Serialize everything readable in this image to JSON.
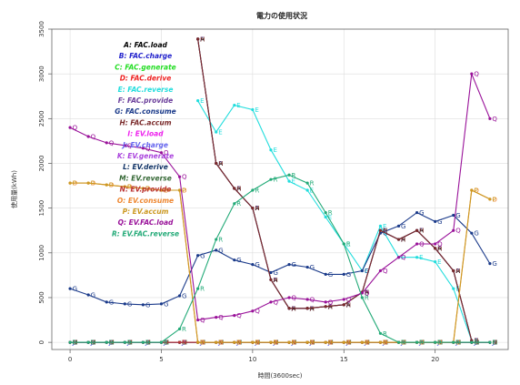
{
  "chart_data": {
    "type": "line",
    "title": "電力の使用状況",
    "xlabel": "時間(3600sec)",
    "ylabel": "使用量(kWh)",
    "xlim": [
      -1,
      24
    ],
    "ylim": [
      -80,
      3500
    ],
    "xticks": [
      0,
      5,
      10,
      15,
      20
    ],
    "yticks": [
      0,
      500,
      1000,
      1500,
      2000,
      2500,
      3000,
      3500
    ],
    "grid": true,
    "legend_position": "top-left",
    "x": [
      0,
      1,
      2,
      3,
      4,
      5,
      6,
      7,
      8,
      9,
      10,
      11,
      12,
      13,
      14,
      15,
      16,
      17,
      18,
      19,
      20,
      21,
      22,
      23
    ],
    "series": [
      {
        "name": "A: FAC.load",
        "mark": "A",
        "color": "#000000",
        "values": [
          null,
          null,
          null,
          null,
          null,
          null,
          null,
          3390,
          2000,
          1720,
          1500,
          700,
          380,
          380,
          400,
          420,
          560,
          1250,
          1150,
          1250,
          1050,
          800,
          20,
          null
        ]
      },
      {
        "name": "B: FAC.charge",
        "mark": "B",
        "color": "#2222cc",
        "values": [
          0,
          0,
          0,
          0,
          0,
          0,
          0,
          0,
          0,
          0,
          0,
          0,
          0,
          0,
          0,
          0,
          0,
          0,
          0,
          0,
          0,
          0,
          0,
          0
        ]
      },
      {
        "name": "C: FAC.generate",
        "mark": "C",
        "color": "#22dd22",
        "values": [
          0,
          0,
          0,
          0,
          0,
          0,
          0,
          0,
          0,
          0,
          0,
          0,
          0,
          0,
          0,
          0,
          0,
          0,
          0,
          0,
          0,
          0,
          0,
          0
        ]
      },
      {
        "name": "D: FAC.derive",
        "mark": "D",
        "color": "#ee2222",
        "values": [
          0,
          0,
          0,
          0,
          0,
          0,
          0,
          0,
          0,
          0,
          0,
          0,
          0,
          0,
          0,
          0,
          0,
          0,
          0,
          0,
          0,
          0,
          0,
          0
        ]
      },
      {
        "name": "E: FAC.reverse",
        "mark": "E",
        "color": "#22dddd",
        "values": [
          null,
          null,
          null,
          null,
          null,
          null,
          null,
          2700,
          2350,
          2650,
          2600,
          2150,
          1800,
          1700,
          1400,
          1100,
          800,
          1300,
          950,
          950,
          900,
          600,
          20,
          null
        ]
      },
      {
        "name": "F: FAC.provide",
        "mark": "F",
        "color": "#6a3d9a",
        "values": [
          null,
          null,
          null,
          null,
          null,
          null,
          null,
          3390,
          2000,
          1720,
          1500,
          700,
          380,
          380,
          400,
          420,
          560,
          1250,
          1150,
          1250,
          1050,
          800,
          20,
          null
        ]
      },
      {
        "name": "G: FAC.consume",
        "mark": "G",
        "color": "#1a3a8a",
        "values": [
          600,
          530,
          450,
          430,
          420,
          430,
          520,
          970,
          1030,
          920,
          870,
          780,
          870,
          840,
          760,
          760,
          800,
          1220,
          1300,
          1450,
          1350,
          1420,
          1220,
          880
        ]
      },
      {
        "name": "H: FAC.accum",
        "mark": "H",
        "color": "#7a2a2a",
        "values": [
          null,
          null,
          null,
          null,
          null,
          null,
          null,
          3390,
          2000,
          1720,
          1500,
          700,
          380,
          380,
          400,
          420,
          560,
          1250,
          1150,
          1250,
          1050,
          800,
          20,
          null
        ]
      },
      {
        "name": "I: EV.load",
        "mark": "I",
        "color": "#ee22ee",
        "values": [
          0,
          0,
          0,
          0,
          0,
          0,
          0,
          0,
          0,
          0,
          0,
          0,
          0,
          0,
          0,
          0,
          0,
          0,
          0,
          0,
          0,
          0,
          0,
          0
        ]
      },
      {
        "name": "J: EV.charge",
        "mark": "J",
        "color": "#6666ee",
        "values": [
          0,
          0,
          0,
          0,
          0,
          0,
          0,
          0,
          0,
          0,
          0,
          0,
          0,
          0,
          0,
          0,
          0,
          0,
          0,
          0,
          0,
          0,
          0,
          0
        ]
      },
      {
        "name": "K: EV.generate",
        "mark": "K",
        "color": "#aa44dd",
        "values": [
          0,
          0,
          0,
          0,
          0,
          0,
          0,
          0,
          0,
          0,
          0,
          0,
          0,
          0,
          0,
          0,
          0,
          0,
          0,
          0,
          0,
          0,
          0,
          0
        ]
      },
      {
        "name": "L: EV.derive",
        "mark": "L",
        "color": "#113366",
        "values": [
          0,
          0,
          0,
          0,
          0,
          0,
          0,
          0,
          0,
          0,
          0,
          0,
          0,
          0,
          0,
          0,
          0,
          0,
          0,
          0,
          0,
          0,
          0,
          0
        ]
      },
      {
        "name": "M: EV.reverse",
        "mark": "M",
        "color": "#336633",
        "values": [
          0,
          0,
          0,
          0,
          0,
          0,
          0,
          0,
          0,
          0,
          0,
          0,
          0,
          0,
          0,
          0,
          0,
          0,
          0,
          0,
          0,
          0,
          0,
          0
        ]
      },
      {
        "name": "N: EV.provide",
        "mark": "N",
        "color": "#bb3333",
        "values": [
          0,
          0,
          0,
          0,
          0,
          0,
          0,
          0,
          0,
          0,
          0,
          0,
          0,
          0,
          0,
          0,
          0,
          0,
          0,
          0,
          0,
          0,
          0,
          0
        ]
      },
      {
        "name": "O: EV.consume",
        "mark": "O",
        "color": "#ee8833",
        "values": [
          1780,
          1780,
          1760,
          1740,
          1720,
          1700,
          1700,
          0,
          0,
          0,
          0,
          0,
          0,
          0,
          0,
          0,
          0,
          0,
          0,
          0,
          0,
          0,
          1700,
          1600
        ]
      },
      {
        "name": "P: EV.accum",
        "mark": "P",
        "color": "#cc9922",
        "values": [
          1780,
          1780,
          1760,
          1740,
          1720,
          1700,
          1700,
          0,
          0,
          0,
          0,
          0,
          0,
          0,
          0,
          0,
          0,
          0,
          0,
          0,
          0,
          0,
          1700,
          1600
        ]
      },
      {
        "name": "Q: EV.FAC.load",
        "mark": "Q",
        "color": "#991199",
        "values": [
          2400,
          2300,
          2230,
          2200,
          2170,
          2120,
          1850,
          250,
          280,
          300,
          350,
          450,
          500,
          480,
          450,
          480,
          550,
          800,
          950,
          1100,
          1100,
          1250,
          3000,
          2500
        ]
      },
      {
        "name": "R: EV.FAC.reverse",
        "mark": "R",
        "color": "#22aa77",
        "values": [
          0,
          0,
          0,
          0,
          0,
          0,
          150,
          600,
          1150,
          1550,
          1700,
          1820,
          1870,
          1780,
          1450,
          1100,
          500,
          100,
          0,
          0,
          0,
          0,
          0,
          0
        ]
      }
    ]
  }
}
